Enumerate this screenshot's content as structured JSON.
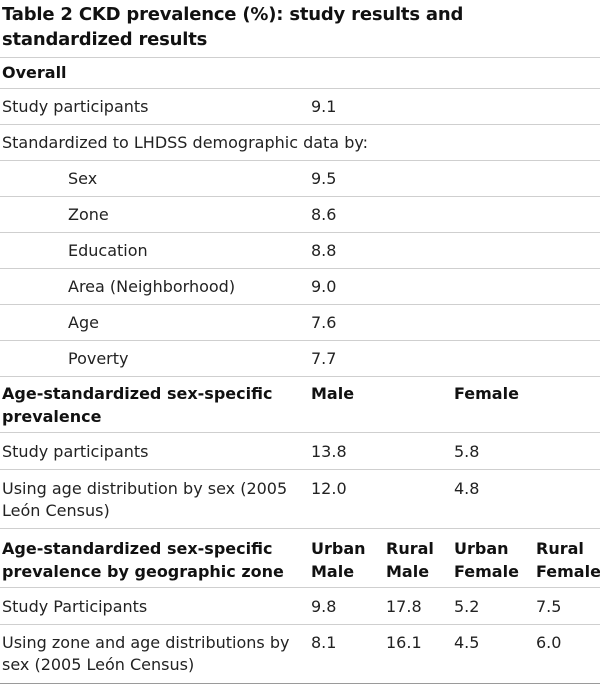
{
  "title": "Table 2 CKD prevalence (%): study results and standardized results",
  "section_overall": {
    "heading": "Overall",
    "study_participants_label": "Study participants",
    "study_participants_value": "9.1",
    "standardized_label": "Standardized to LHDSS demographic data by:",
    "items": [
      {
        "label": "Sex",
        "value": "9.5"
      },
      {
        "label": "Zone",
        "value": "8.6"
      },
      {
        "label": "Education",
        "value": "8.8"
      },
      {
        "label": "Area (Neighborhood)",
        "value": "9.0"
      },
      {
        "label": "Age",
        "value": "7.6"
      },
      {
        "label": "Poverty",
        "value": "7.7"
      }
    ]
  },
  "section_sex": {
    "heading": "Age-standardized sex-specific prevalence",
    "col_male": "Male",
    "col_female": "Female",
    "rows": [
      {
        "label": "Study participants",
        "male": "13.8",
        "female": "5.8"
      },
      {
        "label": "Using age distribution by sex (2005 León Census)",
        "male": "12.0",
        "female": "4.8"
      }
    ]
  },
  "section_zone": {
    "heading": "Age-standardized sex-specific prevalence by geographic zone",
    "cols": [
      "Urban Male",
      "Rural Male",
      "Urban Female",
      "Rural Female"
    ],
    "rows": [
      {
        "label": "Study Participants",
        "values": [
          "9.8",
          "17.8",
          "5.2",
          "7.5"
        ]
      },
      {
        "label": "Using zone and age distributions by sex (2005 León Census)",
        "values": [
          "8.1",
          "16.1",
          "4.5",
          "6.0"
        ]
      }
    ]
  }
}
